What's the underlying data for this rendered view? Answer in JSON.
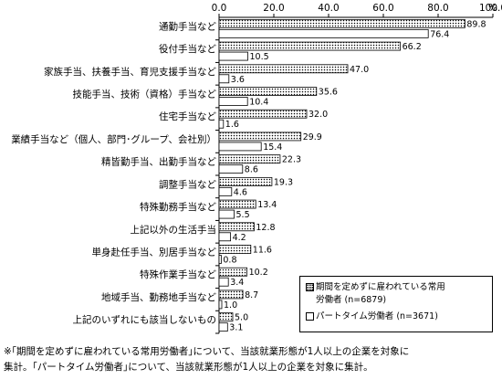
{
  "chart_data": {
    "type": "bar",
    "orientation": "horizontal",
    "unit": "%",
    "xlim": [
      0,
      100
    ],
    "x_ticks": [
      "0.0",
      "20.0",
      "40.0",
      "60.0",
      "80.0",
      "100.0"
    ],
    "categories": [
      "通勤手当など",
      "役付手当など",
      "家族手当、扶養手当、育児支援手当など",
      "技能手当、技術（資格）手当など",
      "住宅手当など",
      "業績手当など（個人、部門･グループ、会社別）",
      "精皆勤手当、出勤手当など",
      "調整手当など",
      "特殊勤務手当など",
      "上記以外の生活手当",
      "単身赴任手当、別居手当など",
      "特殊作業手当など",
      "地域手当、勤務地手当など",
      "上記のいずれにも該当しないもの"
    ],
    "series": [
      {
        "name": "期間を定めずに雇われている常用労働者 (n=6879)",
        "pattern": "dotted",
        "values": [
          89.8,
          66.2,
          47.0,
          35.6,
          32.0,
          29.9,
          22.3,
          19.3,
          13.4,
          12.8,
          11.6,
          10.2,
          8.7,
          5.0
        ],
        "labels": [
          "89.8",
          "66.2",
          "47.0",
          "35.6",
          "32.0",
          "29.9",
          "22.3",
          "19.3",
          "13.4",
          "12.8",
          "11.6",
          "10.2",
          "8.7",
          "5.0"
        ]
      },
      {
        "name": "パートタイム労働者 (n=3671)",
        "pattern": "white",
        "values": [
          76.4,
          10.5,
          3.6,
          10.4,
          1.6,
          15.4,
          8.6,
          4.6,
          5.5,
          4.2,
          0.8,
          3.4,
          1.0,
          3.1
        ],
        "labels": [
          "76.4",
          "10.5",
          "3.6",
          "10.4",
          "1.6",
          "15.4",
          "8.6",
          "4.6",
          "5.5",
          "4.2",
          "0.8",
          "3.4",
          "1.0",
          "3.1"
        ]
      }
    ],
    "legend": {
      "position": "bottom-right",
      "items": [
        "期間を定めずに雇われている常用\n労働者 (n=6879)",
        "パートタイム労働者 (n=3671)"
      ]
    },
    "grid": false,
    "colors": {
      "bar_fill": "#ffffff",
      "pattern": "#000000",
      "border": "#000000"
    }
  },
  "footnotes": [
    "※｢期間を定めずに雇われている常用労働者｣について、当該就業形態が1人以上の企業を対象に",
    "集計。｢パートタイム労働者｣について、当該就業形態が1人以上の企業を対象に集計。"
  ]
}
